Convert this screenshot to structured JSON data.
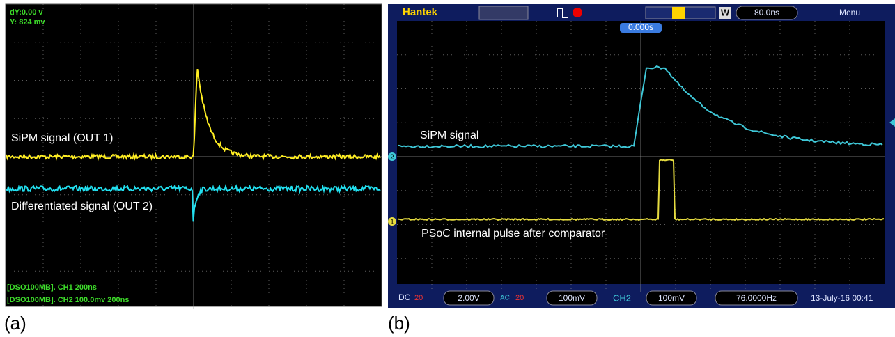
{
  "panel_a": {
    "label": "(a)",
    "readout": [
      "dY:0.00 v",
      "Y:  824 mv"
    ],
    "trace_labels": [
      "SiPM signal (OUT 1)",
      "Differentiated signal (OUT 2)"
    ],
    "footer": [
      "[DSO100MB]. CH1  200ns",
      "[DSO100MB]. CH2 100.0mv 200ns"
    ]
  },
  "panel_b": {
    "label": "(b)",
    "brand": "Hantek",
    "window": "W",
    "timebase": "80.0ns",
    "menu": "Menu",
    "trigger_position": "0.000s",
    "channel_markers": [
      "2",
      "1"
    ],
    "trace_labels": [
      "SiPM signal",
      "PSoC internal pulse after comparator"
    ],
    "status": {
      "ch1_coupling": "DC",
      "ch1_bw": "20",
      "ch1_scale": "2.00V",
      "ch2_coupling": "AC",
      "ch2_bw": "20",
      "ch2_scale": "100mV",
      "trigger_source": "CH2",
      "trigger_level": "100mV",
      "frequency": "76.0000Hz",
      "datetime": "13-July-16 00:41"
    }
  }
}
